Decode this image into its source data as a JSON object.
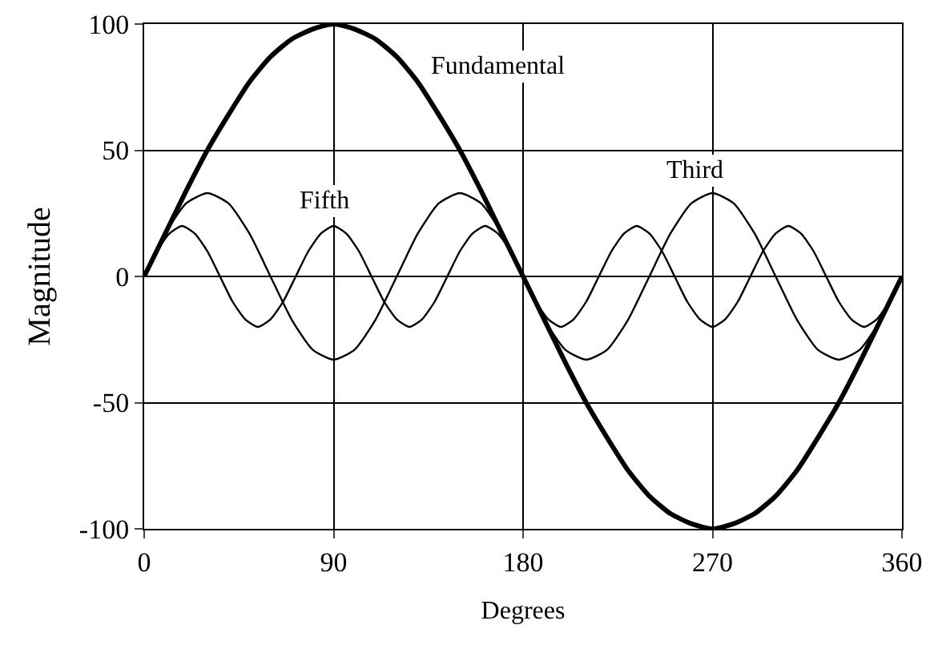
{
  "chart_data": {
    "type": "line",
    "xlabel": "Degrees",
    "ylabel": "Magnitude",
    "xlim": [
      0,
      360
    ],
    "xticks": [
      0,
      90,
      180,
      270,
      360
    ],
    "ylim": [
      -100,
      100
    ],
    "yticks": [
      -100,
      -50,
      0,
      50,
      100
    ],
    "grid": true,
    "legend": false,
    "marker": "none",
    "line_style": "solid",
    "series": [
      {
        "name": "Fundamental",
        "color": "#000000",
        "x": [
          0,
          10,
          20,
          30,
          40,
          50,
          60,
          70,
          80,
          90,
          100,
          110,
          120,
          130,
          140,
          150,
          160,
          170,
          180,
          190,
          200,
          210,
          220,
          230,
          240,
          250,
          260,
          270,
          280,
          290,
          300,
          310,
          320,
          330,
          340,
          350,
          360
        ],
        "values": [
          0,
          17,
          34,
          50,
          64,
          77,
          87,
          94,
          98,
          100,
          98,
          94,
          87,
          77,
          64,
          50,
          34,
          17,
          0,
          -17,
          -34,
          -50,
          -64,
          -77,
          -87,
          -94,
          -98,
          -100,
          -98,
          -94,
          -87,
          -77,
          -64,
          -50,
          -34,
          -17,
          0
        ]
      },
      {
        "name": "Third",
        "color": "#000000",
        "x": [
          0,
          10,
          20,
          30,
          40,
          50,
          60,
          70,
          80,
          90,
          100,
          110,
          120,
          130,
          140,
          150,
          160,
          170,
          180,
          190,
          200,
          210,
          220,
          230,
          240,
          250,
          260,
          270,
          280,
          290,
          300,
          310,
          320,
          330,
          340,
          350,
          360
        ],
        "values": [
          0,
          17,
          29,
          33,
          29,
          17,
          0,
          -17,
          -29,
          -33,
          -29,
          -17,
          0,
          17,
          29,
          33,
          29,
          17,
          0,
          -17,
          -29,
          -33,
          -29,
          -17,
          0,
          17,
          29,
          33,
          29,
          17,
          0,
          -17,
          -29,
          -33,
          -29,
          -17,
          0
        ]
      },
      {
        "name": "Fifth",
        "color": "#000000",
        "x": [
          0,
          6,
          12,
          18,
          24,
          30,
          36,
          42,
          48,
          54,
          60,
          66,
          72,
          78,
          84,
          90,
          96,
          102,
          108,
          114,
          120,
          126,
          132,
          138,
          144,
          150,
          156,
          162,
          168,
          174,
          180,
          186,
          192,
          198,
          204,
          210,
          216,
          222,
          228,
          234,
          240,
          246,
          252,
          258,
          264,
          270,
          276,
          282,
          288,
          294,
          300,
          306,
          312,
          318,
          324,
          330,
          336,
          342,
          348,
          354,
          360
        ],
        "values": [
          0,
          10,
          17,
          20,
          17,
          10,
          0,
          -10,
          -17,
          -20,
          -17,
          -10,
          0,
          10,
          17,
          20,
          17,
          10,
          0,
          -10,
          -17,
          -20,
          -17,
          -10,
          0,
          10,
          17,
          20,
          17,
          10,
          0,
          -10,
          -17,
          -20,
          -17,
          -10,
          0,
          10,
          17,
          20,
          17,
          10,
          0,
          -10,
          -17,
          -20,
          -17,
          -10,
          0,
          10,
          17,
          20,
          17,
          10,
          0,
          -10,
          -17,
          -20,
          -17,
          -10,
          0
        ]
      }
    ]
  }
}
